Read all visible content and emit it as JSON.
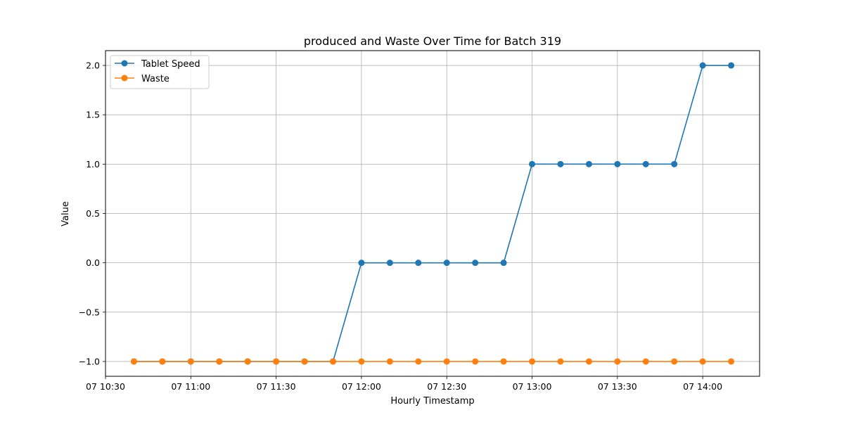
{
  "chart_data": {
    "type": "line",
    "title": "produced and Waste Over Time for Batch 319",
    "xlabel": "Hourly Timestamp",
    "ylabel": "Value",
    "x": [
      "07 10:40",
      "07 10:50",
      "07 11:00",
      "07 11:10",
      "07 11:20",
      "07 11:30",
      "07 11:40",
      "07 11:50",
      "07 12:00",
      "07 12:10",
      "07 12:20",
      "07 12:30",
      "07 12:40",
      "07 12:50",
      "07 13:00",
      "07 13:10",
      "07 13:20",
      "07 13:30",
      "07 13:40",
      "07 13:50",
      "07 14:00",
      "07 14:10"
    ],
    "x_ticks": [
      "07 10:30",
      "07 11:00",
      "07 11:30",
      "07 12:00",
      "07 12:30",
      "07 13:00",
      "07 13:30",
      "07 14:00"
    ],
    "xlim": [
      "07 10:30",
      "07 14:20"
    ],
    "y_ticks": [
      -1.0,
      -0.5,
      0.0,
      0.5,
      1.0,
      1.5,
      2.0
    ],
    "y_tick_labels": [
      "−1.0",
      "−0.5",
      "0.0",
      "0.5",
      "1.0",
      "1.5",
      "2.0"
    ],
    "ylim": [
      -1.15,
      2.15
    ],
    "grid": true,
    "legend_position": "top-left",
    "series": [
      {
        "name": "Tablet Speed",
        "color": "#1f77b4",
        "values": [
          -1,
          -1,
          -1,
          -1,
          -1,
          -1,
          -1,
          -1,
          0,
          0,
          0,
          0,
          0,
          0,
          1,
          1,
          1,
          1,
          1,
          1,
          2,
          2
        ]
      },
      {
        "name": "Waste",
        "color": "#ff7f0e",
        "values": [
          -1,
          -1,
          -1,
          -1,
          -1,
          -1,
          -1,
          -1,
          -1,
          -1,
          -1,
          -1,
          -1,
          -1,
          -1,
          -1,
          -1,
          -1,
          -1,
          -1,
          -1,
          -1
        ]
      }
    ]
  }
}
